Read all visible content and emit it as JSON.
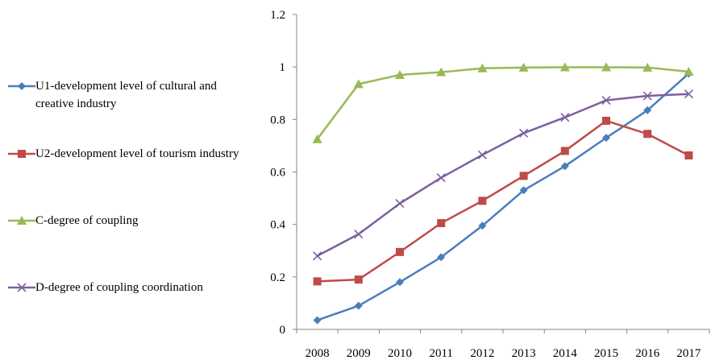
{
  "chart_data": {
    "type": "line",
    "title": "",
    "xlabel": "",
    "ylabel": "",
    "x": [
      "2008",
      "2009",
      "2010",
      "2011",
      "2012",
      "2013",
      "2014",
      "2015",
      "2016",
      "2017"
    ],
    "ylim": [
      0,
      1.2
    ],
    "yticks": [
      "0",
      "0.2",
      "0.4",
      "0.6",
      "0.8",
      "1",
      "1.2"
    ],
    "grid": false,
    "legend_position": "left",
    "series": [
      {
        "name": "U1-development level of cultural and creative industry",
        "color": "#4a7ebb",
        "marker": "diamond",
        "values": [
          0.035,
          0.09,
          0.18,
          0.275,
          0.395,
          0.53,
          0.622,
          0.73,
          0.835,
          0.975
        ]
      },
      {
        "name": "U2-development level of tourism industry",
        "color": "#be4b48",
        "marker": "square",
        "values": [
          0.183,
          0.19,
          0.295,
          0.405,
          0.49,
          0.585,
          0.68,
          0.795,
          0.745,
          0.663
        ]
      },
      {
        "name": "C-degree of coupling",
        "color": "#98b954",
        "marker": "triangle",
        "values": [
          0.725,
          0.935,
          0.97,
          0.98,
          0.995,
          0.998,
          0.999,
          0.999,
          0.998,
          0.982
        ]
      },
      {
        "name": "D-degree of coupling coordination",
        "color": "#7d5fa0",
        "marker": "x",
        "values": [
          0.28,
          0.363,
          0.48,
          0.578,
          0.665,
          0.748,
          0.808,
          0.873,
          0.89,
          0.897
        ]
      }
    ]
  }
}
